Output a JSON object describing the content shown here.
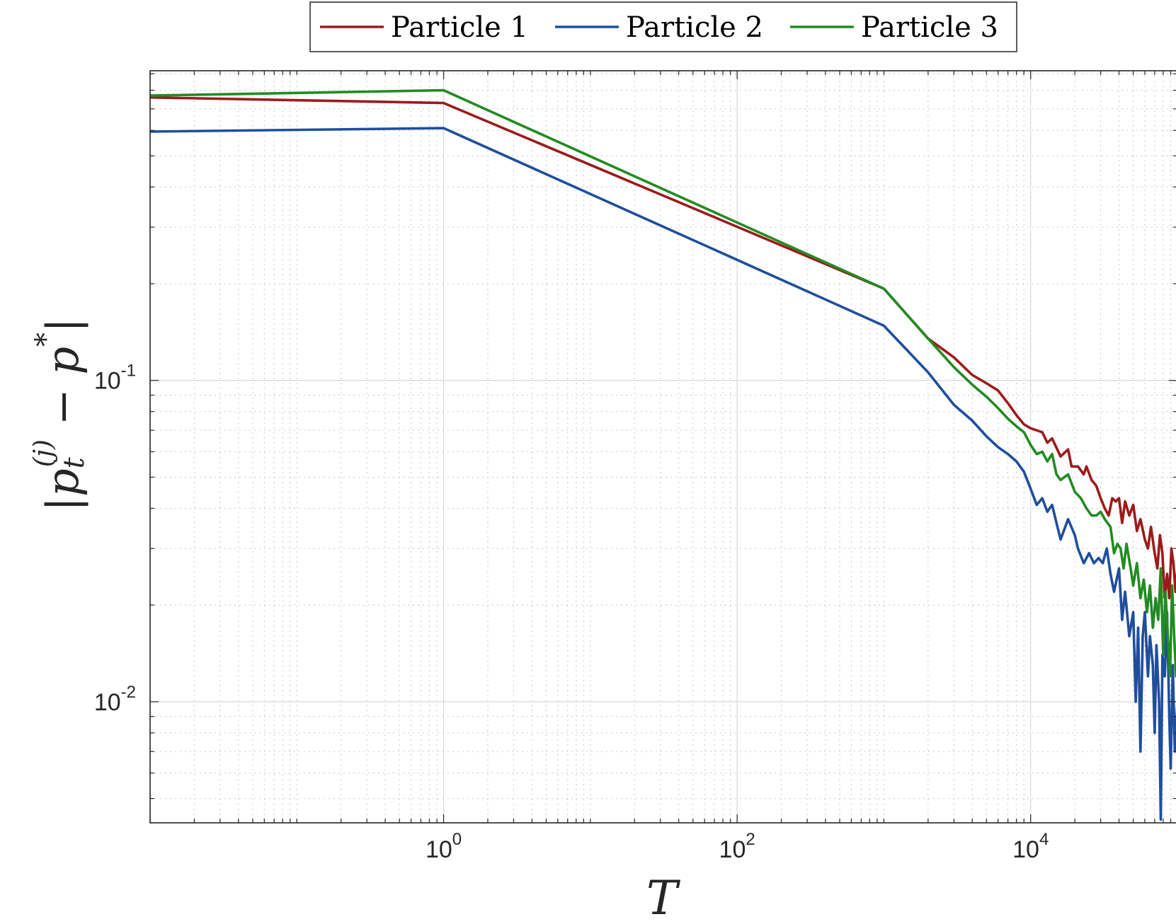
{
  "chart_data": {
    "type": "line",
    "xscale": "log",
    "yscale": "log",
    "xlim": [
      0.01,
      100000
    ],
    "ylim": [
      0.0042,
      0.92
    ],
    "xlabel": "T",
    "ylabel": {
      "prefix": "|p",
      "subscript": "t",
      "superscript": "(j)",
      "minus": " − ",
      "target": "p",
      "star": "*",
      "suffix": "|"
    },
    "grid": true,
    "minor_grid": true,
    "legend": {
      "placement": "top-center",
      "orientation": "horizontal",
      "entries": [
        "Particle 1",
        "Particle 2",
        "Particle 3"
      ]
    },
    "xticks": [
      {
        "value": 1,
        "base": "10",
        "exp": "0"
      },
      {
        "value": 100,
        "base": "10",
        "exp": "2"
      },
      {
        "value": 10000,
        "base": "10",
        "exp": "4"
      }
    ],
    "yticks": [
      {
        "value": 0.1,
        "base": "10",
        "exp": "-1"
      },
      {
        "value": 0.01,
        "base": "10",
        "exp": "-2"
      }
    ],
    "series": [
      {
        "name": "Particle 1",
        "color": "#9b1b1b",
        "points": [
          [
            0.01,
            0.76
          ],
          [
            1,
            0.73
          ],
          [
            1000,
            0.193
          ],
          [
            2000,
            0.135
          ],
          [
            3000,
            0.118
          ],
          [
            4000,
            0.104
          ],
          [
            5000,
            0.098
          ],
          [
            6000,
            0.093
          ],
          [
            7000,
            0.085
          ],
          [
            8000,
            0.078
          ],
          [
            9000,
            0.073
          ],
          [
            10000,
            0.071
          ],
          [
            12000,
            0.069
          ],
          [
            13000,
            0.064
          ],
          [
            14000,
            0.066
          ],
          [
            16000,
            0.058
          ],
          [
            18000,
            0.061
          ],
          [
            19000,
            0.054
          ],
          [
            21000,
            0.054
          ],
          [
            23000,
            0.051
          ],
          [
            24000,
            0.054
          ],
          [
            26000,
            0.049
          ],
          [
            28000,
            0.047
          ],
          [
            30000,
            0.043
          ],
          [
            32000,
            0.04
          ],
          [
            34000,
            0.038
          ],
          [
            36000,
            0.043
          ],
          [
            38000,
            0.042
          ],
          [
            40000,
            0.043
          ],
          [
            42000,
            0.036
          ],
          [
            44000,
            0.042
          ],
          [
            47000,
            0.038
          ],
          [
            50000,
            0.041
          ],
          [
            53000,
            0.034
          ],
          [
            56000,
            0.037
          ],
          [
            60000,
            0.032
          ],
          [
            63000,
            0.03
          ],
          [
            66000,
            0.035
          ],
          [
            70000,
            0.029
          ],
          [
            73000,
            0.026
          ],
          [
            76000,
            0.033
          ],
          [
            79000,
            0.029
          ],
          [
            82000,
            0.021
          ],
          [
            85000,
            0.025
          ],
          [
            88000,
            0.021
          ],
          [
            91000,
            0.03
          ],
          [
            94000,
            0.027
          ],
          [
            97000,
            0.022
          ],
          [
            100000,
            0.026
          ]
        ]
      },
      {
        "name": "Particle 2",
        "color": "#1f4e9c",
        "points": [
          [
            0.01,
            0.595
          ],
          [
            1,
            0.61
          ],
          [
            1000,
            0.148
          ],
          [
            2000,
            0.106
          ],
          [
            3000,
            0.084
          ],
          [
            4000,
            0.075
          ],
          [
            5000,
            0.067
          ],
          [
            6000,
            0.062
          ],
          [
            7000,
            0.059
          ],
          [
            8000,
            0.056
          ],
          [
            9000,
            0.052
          ],
          [
            10000,
            0.046
          ],
          [
            11000,
            0.041
          ],
          [
            12000,
            0.043
          ],
          [
            13000,
            0.039
          ],
          [
            14000,
            0.041
          ],
          [
            15000,
            0.036
          ],
          [
            16000,
            0.032
          ],
          [
            18000,
            0.037
          ],
          [
            20000,
            0.033
          ],
          [
            21000,
            0.03
          ],
          [
            23000,
            0.027
          ],
          [
            25000,
            0.029
          ],
          [
            27000,
            0.027
          ],
          [
            29000,
            0.028
          ],
          [
            31000,
            0.027
          ],
          [
            33000,
            0.03
          ],
          [
            35000,
            0.025
          ],
          [
            37000,
            0.022
          ],
          [
            40000,
            0.026
          ],
          [
            42000,
            0.018
          ],
          [
            44000,
            0.022
          ],
          [
            47000,
            0.016
          ],
          [
            50000,
            0.019
          ],
          [
            52000,
            0.01
          ],
          [
            54000,
            0.017
          ],
          [
            56000,
            0.007
          ],
          [
            58000,
            0.016
          ],
          [
            60000,
            0.019
          ],
          [
            63000,
            0.012
          ],
          [
            65000,
            0.016
          ],
          [
            68000,
            0.013
          ],
          [
            70000,
            0.008
          ],
          [
            72000,
            0.015
          ],
          [
            75000,
            0.01
          ],
          [
            77000,
            0.0043
          ],
          [
            79000,
            0.014
          ],
          [
            82000,
            0.012
          ],
          [
            85000,
            0.019
          ],
          [
            88000,
            0.009
          ],
          [
            90000,
            0.0062
          ],
          [
            93000,
            0.013
          ],
          [
            96000,
            0.007
          ],
          [
            100000,
            0.01
          ]
        ]
      },
      {
        "name": "Particle 3",
        "color": "#228b22",
        "points": [
          [
            0.01,
            0.77
          ],
          [
            1,
            0.8
          ],
          [
            1000,
            0.193
          ],
          [
            2000,
            0.135
          ],
          [
            3000,
            0.11
          ],
          [
            4000,
            0.097
          ],
          [
            5000,
            0.089
          ],
          [
            6000,
            0.082
          ],
          [
            7000,
            0.076
          ],
          [
            8000,
            0.072
          ],
          [
            9000,
            0.069
          ],
          [
            10000,
            0.063
          ],
          [
            11000,
            0.059
          ],
          [
            12000,
            0.06
          ],
          [
            13000,
            0.056
          ],
          [
            14000,
            0.059
          ],
          [
            15000,
            0.051
          ],
          [
            16000,
            0.049
          ],
          [
            18000,
            0.051
          ],
          [
            20000,
            0.045
          ],
          [
            22000,
            0.043
          ],
          [
            24000,
            0.04
          ],
          [
            26000,
            0.038
          ],
          [
            28000,
            0.038
          ],
          [
            30000,
            0.039
          ],
          [
            32000,
            0.037
          ],
          [
            35000,
            0.035
          ],
          [
            37000,
            0.029
          ],
          [
            39000,
            0.031
          ],
          [
            41000,
            0.03
          ],
          [
            43000,
            0.026
          ],
          [
            45000,
            0.031
          ],
          [
            48000,
            0.026
          ],
          [
            50000,
            0.023
          ],
          [
            53000,
            0.027
          ],
          [
            56000,
            0.021
          ],
          [
            59000,
            0.024
          ],
          [
            62000,
            0.019
          ],
          [
            65000,
            0.023
          ],
          [
            68000,
            0.017
          ],
          [
            71000,
            0.021
          ],
          [
            74000,
            0.018
          ],
          [
            77000,
            0.026
          ],
          [
            80000,
            0.014
          ],
          [
            83000,
            0.022
          ],
          [
            86000,
            0.016
          ],
          [
            89000,
            0.012
          ],
          [
            92000,
            0.023
          ],
          [
            95000,
            0.016
          ],
          [
            98000,
            0.012
          ],
          [
            100000,
            0.015
          ]
        ]
      }
    ]
  }
}
